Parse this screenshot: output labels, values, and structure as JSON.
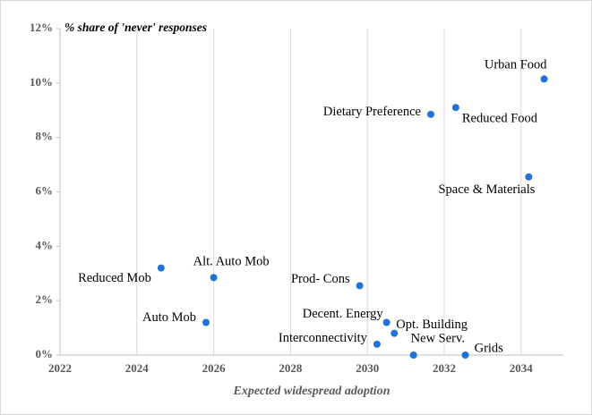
{
  "chart_data": {
    "type": "scatter",
    "title": "% share of 'never' responses",
    "x_label": "Expected widespread adoption",
    "color": "#1f72d6",
    "labels": [
      "Urban Food",
      "Reduced Food",
      "Dietary Preference",
      "Space & Materials",
      "Reduced Mob",
      "Alt. Auto Mob",
      "Prod- Cons",
      "Auto Mob",
      "Decent. Energy",
      "Opt. Building",
      "Interconnectivity",
      "New Serv.",
      "Grids"
    ],
    "x": [
      2034.6,
      2032.3,
      2031.65,
      2034.2,
      2024.63,
      2026.0,
      2029.8,
      2025.8,
      2030.5,
      2030.7,
      2030.25,
      2031.2,
      2032.55
    ],
    "values": [
      10.15,
      9.1,
      8.85,
      6.55,
      3.2,
      2.85,
      2.55,
      1.2,
      1.2,
      0.8,
      0.4,
      0.0,
      0.0
    ],
    "xlim": [
      2022,
      2035.1
    ],
    "xticks": [
      2022,
      2024,
      2026,
      2028,
      2030,
      2032,
      2034
    ],
    "ylim": [
      0,
      12
    ],
    "yticks": [
      {
        "value": 0,
        "label": "0%"
      },
      {
        "value": 2,
        "label": "2%"
      },
      {
        "value": 4,
        "label": "4%"
      },
      {
        "value": 6,
        "label": "6%"
      },
      {
        "value": 8,
        "label": "8%"
      },
      {
        "value": 10,
        "label": "10%"
      },
      {
        "value": 12,
        "label": "12%"
      }
    ],
    "grid": "x"
  }
}
